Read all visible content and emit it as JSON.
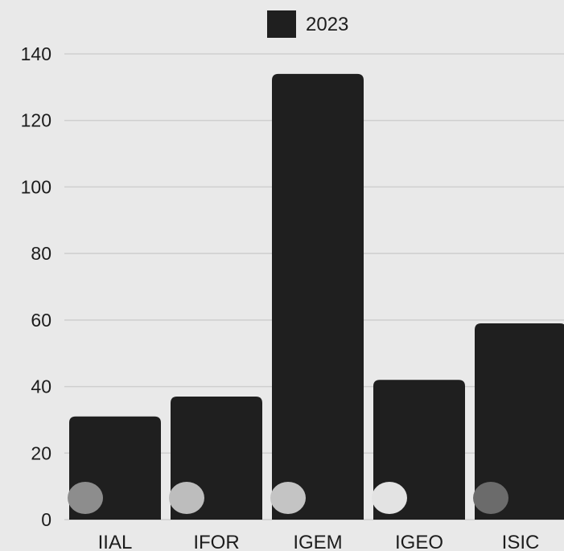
{
  "chart_data": {
    "type": "bar",
    "categories": [
      "IIAL",
      "IFOR",
      "IGEM",
      "IGEO",
      "ISIC"
    ],
    "series": [
      {
        "name": "2023",
        "values": [
          31,
          37,
          134,
          42,
          59
        ]
      }
    ],
    "ylim": [
      0,
      140
    ],
    "yticks": [
      0,
      20,
      40,
      60,
      80,
      100,
      120,
      140
    ],
    "grid": true,
    "legend_position": "top-center",
    "colors": {
      "bar": "#1f1f1f",
      "grid": "#cfcfcf",
      "background": "#e9e9e9"
    },
    "markers": [
      "#8d8d8d",
      "#bdbdbd",
      "#c4c4c4",
      "#e3e3e3",
      "#6b6b6b"
    ]
  }
}
